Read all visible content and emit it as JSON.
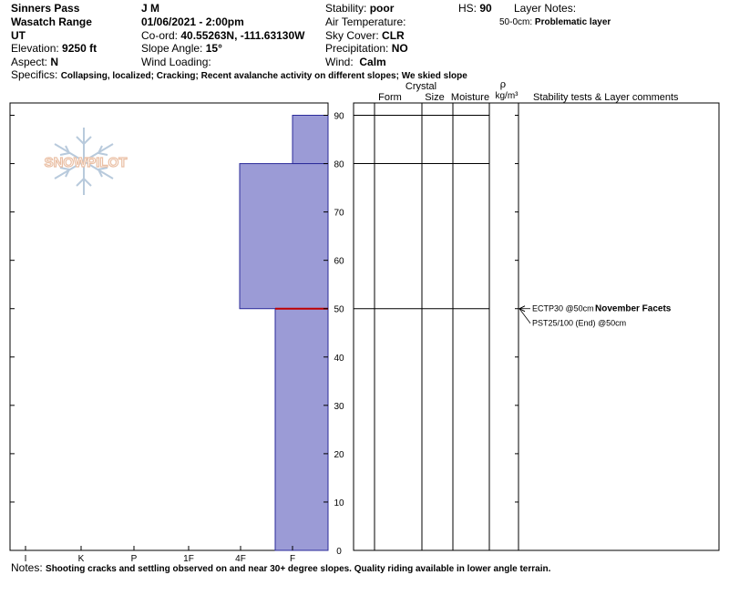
{
  "header": {
    "location": "Sinners Pass",
    "range": "Wasatch Range",
    "state": "UT",
    "elevation_label": "Elevation:",
    "elevation": "9250 ft",
    "aspect_label": "Aspect:",
    "aspect": "N",
    "observer": "J M",
    "datetime": "01/06/2021 - 2:00pm",
    "coord_label": "Co-ord:",
    "coord": "40.55263N, -111.63130W",
    "slope_label": "Slope Angle:",
    "slope": "15°",
    "wind_loading_label": "Wind Loading:",
    "wind_loading": "",
    "stability_label": "Stability:",
    "stability": "poor",
    "air_temp_label": "Air Temperature:",
    "air_temp": "",
    "sky_label": "Sky Cover:",
    "sky": "CLR",
    "precip_label": "Precipitation:",
    "precip": "NO",
    "wind_label": "Wind:",
    "wind": "Calm",
    "hs_label": "HS:",
    "hs": "90",
    "layer_notes_label": "Layer Notes:",
    "layer_note_range": "50-0cm:",
    "layer_note_text": "Problematic layer",
    "specifics_label": "Specifics:",
    "specifics": "Collapsing, localized;  Cracking;  Recent avalanche activity on different slopes;  We skied slope",
    "notes_label": "Notes:",
    "notes": "Shooting cracks and settling observed on and near 30+ degree slopes. Quality riding available in lower angle terrain."
  },
  "logo": {
    "text": "SNOWPILOT"
  },
  "columns": {
    "form": "Form",
    "crystal": "Crystal",
    "size": "Size",
    "moisture": "Moisture",
    "rho": "ρ",
    "density_unit": "kg/m³",
    "comments": "Stability tests & Layer comments"
  },
  "chart_data": {
    "type": "bar",
    "title": "",
    "xlabel": "",
    "ylabel": "",
    "x_categories": [
      "I",
      "K",
      "P",
      "1F",
      "4F",
      "F"
    ],
    "ylim": [
      0,
      90
    ],
    "y_ticks": [
      0,
      10,
      20,
      30,
      40,
      50,
      60,
      70,
      80,
      90
    ],
    "layers": [
      {
        "top": 90,
        "bottom": 80,
        "hardness": "F"
      },
      {
        "top": 80,
        "bottom": 50,
        "hardness": "4F"
      },
      {
        "top": 50,
        "bottom": 0,
        "hardness": "F"
      }
    ],
    "layer_boundaries": [
      90,
      80,
      50
    ],
    "problem_layer_depth": 50,
    "stability_tests": [
      {
        "depth": 50,
        "test": "ECTP30 @50cm",
        "comment": "November Facets"
      },
      {
        "depth": 50,
        "test": "PST25/100 (End) @50cm",
        "comment": ""
      }
    ]
  }
}
